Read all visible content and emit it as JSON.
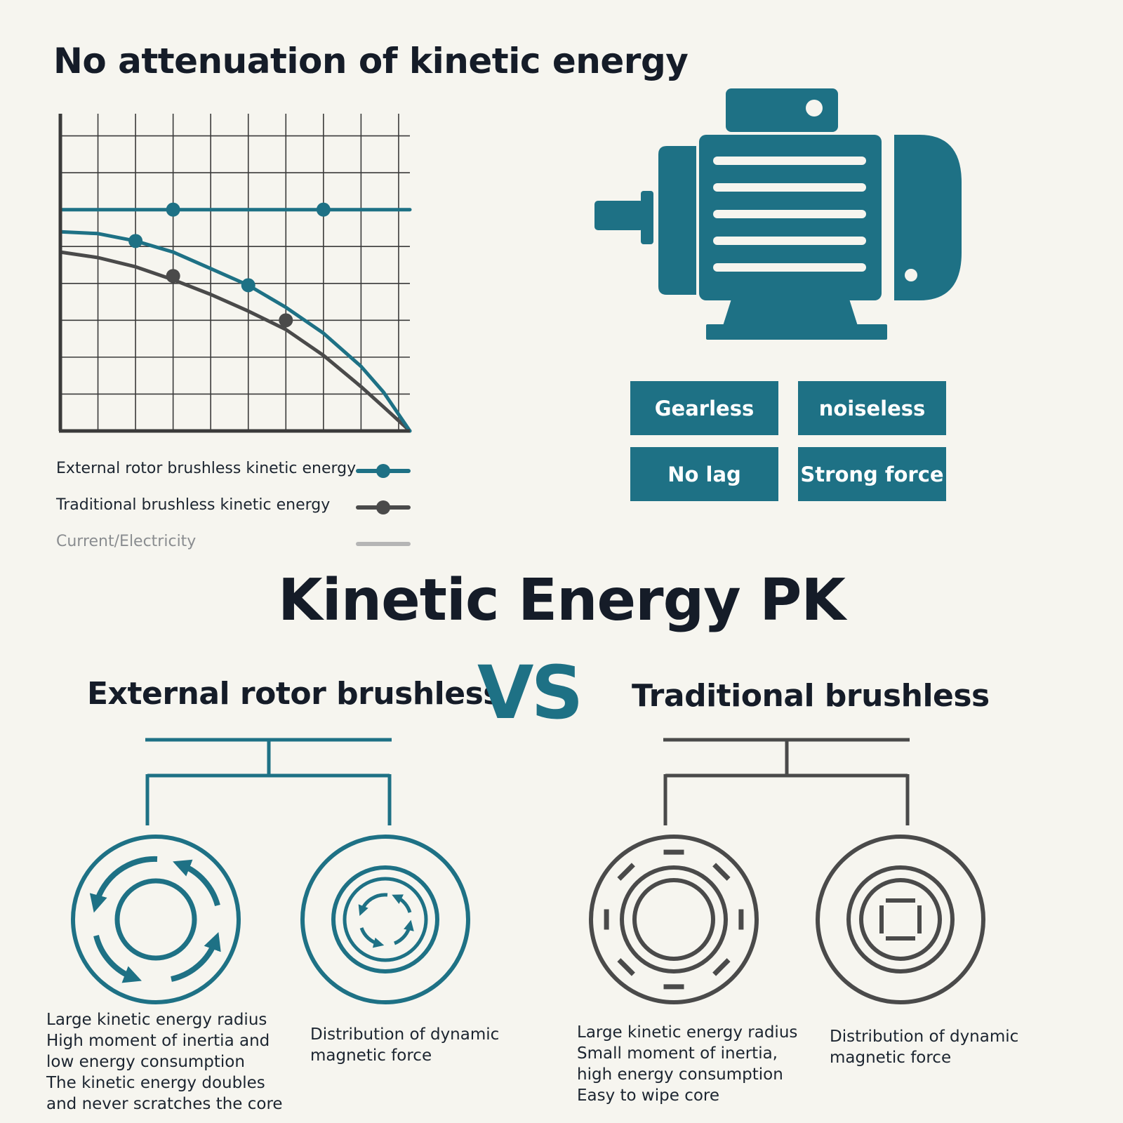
{
  "top_title": "No attenuation of kinetic energy",
  "chart_data": {
    "type": "line",
    "title": "No attenuation of kinetic energy",
    "xlabel": "",
    "ylabel": "",
    "xlim": [
      0,
      9.3
    ],
    "ylim": [
      0,
      8.6
    ],
    "grid": true,
    "legend_position": "below",
    "series": [
      {
        "name": "External rotor brushless kinetic energy",
        "color": "#1e7185",
        "x": [
          0,
          1,
          2,
          3,
          4,
          5,
          6,
          7,
          8,
          8.6,
          9.3
        ],
        "y": [
          5.4,
          5.35,
          5.15,
          4.85,
          4.4,
          3.95,
          3.35,
          2.65,
          1.75,
          1.05,
          0
        ],
        "markers": [
          [
            2,
            5.15
          ],
          [
            5,
            3.95
          ]
        ]
      },
      {
        "name": "Traditional brushless kinetic energy",
        "color": "#4a4a4a",
        "x": [
          0,
          1,
          2,
          3,
          4,
          5,
          6,
          7,
          8,
          8.6,
          9.3
        ],
        "y": [
          4.85,
          4.7,
          4.45,
          4.1,
          3.7,
          3.25,
          2.75,
          2.05,
          1.2,
          0.65,
          0
        ],
        "markers": [
          [
            3,
            4.2
          ],
          [
            6,
            3.0
          ]
        ]
      },
      {
        "name": "Current/Electricity",
        "color": "#1e7185",
        "x": [
          0,
          9.3
        ],
        "y": [
          6.0,
          6.0
        ],
        "markers": [
          [
            3,
            6.0
          ],
          [
            7,
            6.0
          ]
        ]
      }
    ]
  },
  "legend": [
    {
      "label": "External rotor brushless kinetic energy",
      "color": "#1e7185",
      "marker": true
    },
    {
      "label": "Traditional brushless kinetic energy",
      "color": "#4a4a4a",
      "marker": true
    },
    {
      "label": "Current/Electricity",
      "color": "#b5b5b5",
      "marker": false
    }
  ],
  "features": {
    "gearless": "Gearless",
    "noiseless": "noiseless",
    "no_lag": "No lag",
    "strong_force": "Strong force"
  },
  "pk_title": "Kinetic Energy PK",
  "comparison": {
    "left_heading": "External rotor brushless",
    "vs": "VS",
    "right_heading": "Traditional brushless"
  },
  "descriptions": {
    "external_radius": [
      "Large kinetic energy radius",
      "High moment of inertia and",
      "low energy consumption",
      "The kinetic energy doubles",
      "and never scratches the core"
    ],
    "external_magnetic": [
      "Distribution of dynamic",
      "magnetic force"
    ],
    "traditional_radius": [
      "Large kinetic energy radius",
      "Small moment of inertia,",
      "high energy consumption",
      "Easy to wipe core"
    ],
    "traditional_magnetic": [
      "Distribution of dynamic",
      "magnetic force"
    ]
  },
  "colors": {
    "teal": "#1e7185",
    "dark_gray": "#4a4a4a",
    "light_gray": "#b5b5b5",
    "background": "#f6f5ef"
  }
}
